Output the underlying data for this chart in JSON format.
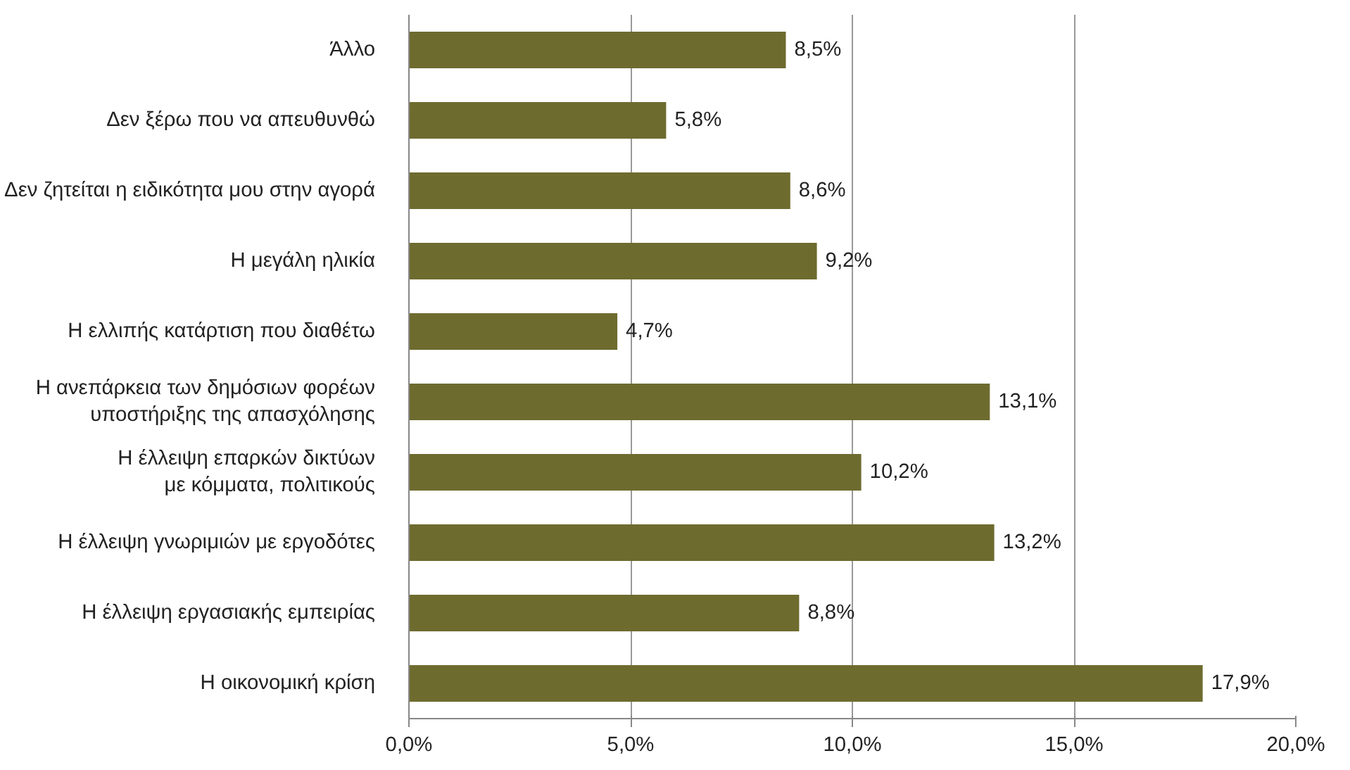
{
  "chart_data": {
    "type": "bar",
    "orientation": "horizontal",
    "categories": [
      "Άλλο",
      "Δεν ξέρω που να απευθυνθώ",
      "Δεν ζητείται η ειδικότητα μου στην αγορά",
      "Η μεγάλη ηλικία",
      "Η ελλιπής κατάρτιση που διαθέτω",
      "Η ανεπάρκεια των δημόσιων φορέων\nυποστήριξης της απασχόλησης",
      "Η έλλειψη επαρκών δικτύων\nμε κόμματα, πολιτικούς",
      "Η έλλειψη γνωριμιών με εργοδότες",
      "Η έλλειψη εργασιακής εμπειρίας",
      "Η οικονομική κρίση"
    ],
    "values": [
      8.5,
      5.8,
      8.6,
      9.2,
      4.7,
      13.1,
      10.2,
      13.2,
      8.8,
      17.9
    ],
    "value_labels": [
      "8,5%",
      "5,8%",
      "8,6%",
      "9,2%",
      "4,7%",
      "13,1%",
      "10,2%",
      "13,2%",
      "8,8%",
      "17,9%"
    ],
    "color": "#6e6b2f",
    "xlim": [
      0,
      20
    ],
    "xticks": [
      {
        "value": 0,
        "label": "0,0%"
      },
      {
        "value": 5,
        "label": "5,0%"
      },
      {
        "value": 10,
        "label": "10,0%"
      },
      {
        "value": 15,
        "label": "15,0%"
      },
      {
        "value": 20,
        "label": "20,0%"
      }
    ],
    "grid": "x"
  }
}
